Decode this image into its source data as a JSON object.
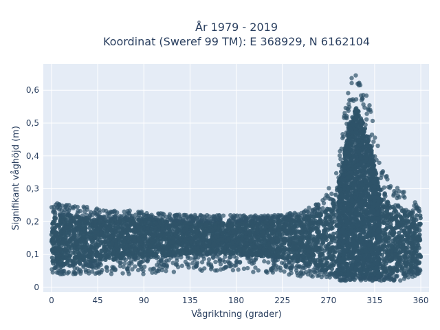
{
  "chart_data": {
    "type": "scatter",
    "title_line1": "År 1979 - 2019",
    "title_line2": "Koordinat (Sweref 99 TM): E 368929, N 6162104",
    "xlabel": "Vågriktning (grader)",
    "ylabel": "Signifikant våghöjd (m)",
    "xlim": [
      -8,
      368
    ],
    "ylim": [
      -0.015,
      0.68
    ],
    "x_ticks": [
      0,
      45,
      90,
      135,
      180,
      225,
      270,
      315,
      360
    ],
    "x_tick_labels": [
      "0",
      "45",
      "90",
      "135",
      "180",
      "225",
      "270",
      "315",
      "360"
    ],
    "y_ticks": [
      0,
      0.1,
      0.2,
      0.3,
      0.4,
      0.5,
      0.6
    ],
    "y_tick_labels": [
      "0",
      "0,1",
      "0,2",
      "0,3",
      "0,4",
      "0,5",
      "0,6"
    ],
    "grid": true,
    "legend": "none",
    "marker_color": "#2f5369",
    "plot_background": "#e5ecf6",
    "envelope": {
      "x": [
        0,
        20,
        45,
        90,
        135,
        180,
        225,
        250,
        265,
        275,
        282,
        290,
        297,
        305,
        312,
        320,
        330,
        340,
        350,
        360
      ],
      "y_max": [
        0.26,
        0.25,
        0.24,
        0.23,
        0.22,
        0.22,
        0.22,
        0.24,
        0.27,
        0.33,
        0.44,
        0.63,
        0.65,
        0.6,
        0.55,
        0.4,
        0.32,
        0.3,
        0.28,
        0.24
      ],
      "y_min": [
        0.04,
        0.04,
        0.04,
        0.04,
        0.05,
        0.05,
        0.04,
        0.03,
        0.03,
        0.03,
        0.02,
        0.02,
        0.02,
        0.02,
        0.02,
        0.02,
        0.02,
        0.02,
        0.03,
        0.04
      ],
      "y_core_high": [
        0.22,
        0.22,
        0.21,
        0.21,
        0.2,
        0.2,
        0.21,
        0.22,
        0.23,
        0.27,
        0.35,
        0.5,
        0.55,
        0.5,
        0.42,
        0.3,
        0.25,
        0.24,
        0.23,
        0.22
      ],
      "y_core_low": [
        0.07,
        0.07,
        0.08,
        0.09,
        0.1,
        0.1,
        0.09,
        0.07,
        0.05,
        0.04,
        0.03,
        0.03,
        0.03,
        0.03,
        0.03,
        0.03,
        0.04,
        0.05,
        0.05,
        0.07
      ]
    }
  }
}
